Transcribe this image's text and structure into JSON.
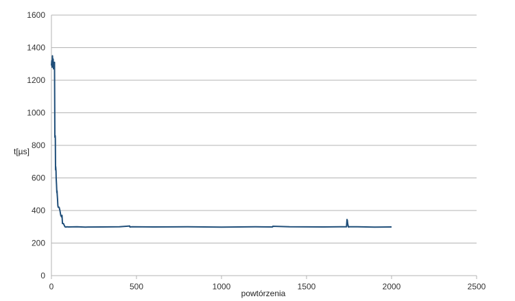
{
  "chart_data": {
    "type": "line",
    "title": "",
    "xlabel": "powtórzenia",
    "ylabel": "t[µs]",
    "xlim": [
      0,
      2500
    ],
    "ylim": [
      0,
      1600
    ],
    "xticks": [
      "0",
      "500",
      "1000",
      "1500",
      "2000",
      "2500"
    ],
    "yticks": [
      "0",
      "200",
      "400",
      "600",
      "800",
      "1000",
      "1200",
      "1400",
      "1600"
    ],
    "grid": true,
    "legend": "none",
    "series_color": "#1f4e79",
    "grid_color": "#b3b3b3",
    "series": [
      {
        "x": [
          0,
          2,
          4,
          6,
          8,
          10,
          12,
          14,
          16,
          18,
          20,
          22,
          23,
          24,
          25,
          27,
          28,
          30,
          32,
          33,
          34,
          36,
          38,
          40,
          45,
          50,
          55,
          60,
          62,
          65,
          70,
          75,
          80,
          85,
          90,
          100,
          150,
          200,
          300,
          400,
          460,
          462,
          470,
          600,
          800,
          1000,
          1200,
          1300,
          1302,
          1400,
          1600,
          1700,
          1735,
          1738,
          1740,
          1742,
          1744,
          1746,
          1748,
          1750,
          1800,
          1900,
          2000
        ],
        "y": [
          1290,
          1320,
          1280,
          1350,
          1300,
          1330,
          1270,
          1310,
          1290,
          1310,
          850,
          860,
          840,
          650,
          670,
          640,
          600,
          560,
          510,
          520,
          500,
          470,
          430,
          420,
          420,
          400,
          370,
          360,
          370,
          320,
          320,
          310,
          300,
          298,
          300,
          299,
          300,
          298,
          299,
          300,
          305,
          298,
          300,
          299,
          300,
          298,
          300,
          299,
          303,
          300,
          299,
          300,
          300,
          345,
          340,
          320,
          310,
          300,
          298,
          300,
          300,
          298,
          299
        ]
      }
    ]
  }
}
